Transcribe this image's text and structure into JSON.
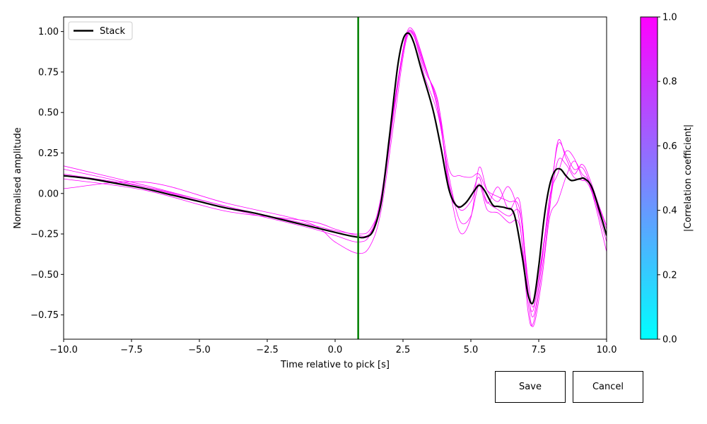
{
  "chart_data": {
    "type": "line",
    "xlabel": "Time relative to pick [s]",
    "ylabel": "Normalised amplitude",
    "xlim": [
      -10,
      10
    ],
    "ylim": [
      -0.9,
      1.09
    ],
    "xticks": [
      "−10.0",
      "−7.5",
      "−5.0",
      "−2.5",
      "0.0",
      "2.5",
      "5.0",
      "7.5",
      "10.0"
    ],
    "yticks": [
      "−0.75",
      "−0.50",
      "−0.25",
      "0.00",
      "0.25",
      "0.50",
      "0.75",
      "1.00"
    ],
    "legend": {
      "placement": "upper-left",
      "entries": [
        "Stack"
      ]
    },
    "pick_time": 0.85,
    "pick_color": "#008000",
    "stack": {
      "name": "Stack",
      "color": "#000000",
      "x": [
        -10,
        -9,
        -8,
        -7,
        -6,
        -5,
        -4,
        -3,
        -2,
        -1,
        0,
        0.5,
        0.85,
        1.1,
        1.4,
        1.7,
        2.0,
        2.3,
        2.5,
        2.7,
        2.9,
        3.2,
        3.6,
        3.9,
        4.2,
        4.5,
        4.8,
        5.1,
        5.3,
        5.5,
        5.8,
        6.0,
        6.3,
        6.6,
        6.9,
        7.1,
        7.3,
        7.5,
        7.7,
        7.9,
        8.1,
        8.3,
        8.5,
        8.7,
        9.0,
        9.2,
        9.5,
        10.0
      ],
      "y": [
        0.11,
        0.09,
        0.06,
        0.03,
        -0.01,
        -0.05,
        -0.09,
        -0.12,
        -0.16,
        -0.2,
        -0.24,
        -0.26,
        -0.27,
        -0.27,
        -0.23,
        -0.05,
        0.35,
        0.78,
        0.95,
        0.99,
        0.93,
        0.75,
        0.52,
        0.28,
        0.02,
        -0.08,
        -0.06,
        0.01,
        0.05,
        0.02,
        -0.07,
        -0.08,
        -0.09,
        -0.13,
        -0.4,
        -0.62,
        -0.67,
        -0.45,
        -0.15,
        0.05,
        0.14,
        0.15,
        0.11,
        0.08,
        0.09,
        0.09,
        0.02,
        -0.26
      ]
    },
    "traces": [
      {
        "x": [
          -10,
          -7,
          -4,
          -1,
          0,
          0.85,
          1.3,
          1.7,
          2.2,
          2.6,
          2.9,
          3.3,
          3.8,
          4.2,
          4.6,
          5.0,
          5.3,
          5.6,
          6.0,
          6.4,
          6.8,
          7.1,
          7.3,
          7.6,
          7.9,
          8.2,
          8.5,
          8.8,
          9.1,
          9.4,
          10.0
        ],
        "y": [
          0.17,
          0.05,
          -0.08,
          -0.19,
          -0.23,
          -0.25,
          -0.22,
          -0.03,
          0.55,
          0.95,
          0.98,
          0.78,
          0.55,
          0.15,
          0.11,
          0.1,
          0.12,
          0.02,
          -0.02,
          -0.05,
          -0.1,
          -0.6,
          -0.72,
          -0.4,
          -0.05,
          0.3,
          0.24,
          0.15,
          0.16,
          0.06,
          -0.2
        ]
      },
      {
        "x": [
          -10,
          -7,
          -4,
          -1,
          0,
          0.85,
          1.3,
          1.7,
          2.2,
          2.6,
          2.9,
          3.3,
          3.8,
          4.2,
          4.6,
          5.0,
          5.3,
          5.6,
          6.0,
          6.4,
          6.8,
          7.1,
          7.3,
          7.6,
          7.9,
          8.2,
          8.5,
          8.8,
          9.1,
          9.4,
          10.0
        ],
        "y": [
          0.15,
          0.04,
          -0.09,
          -0.21,
          -0.26,
          -0.3,
          -0.25,
          -0.01,
          0.58,
          0.96,
          0.99,
          0.8,
          0.5,
          0.05,
          -0.24,
          -0.15,
          0.16,
          0.02,
          -0.05,
          0.04,
          -0.18,
          -0.72,
          -0.8,
          -0.5,
          -0.1,
          0.32,
          0.22,
          0.12,
          0.18,
          0.08,
          -0.22
        ]
      },
      {
        "x": [
          -10,
          -7,
          -4,
          -1,
          0,
          0.85,
          1.3,
          1.7,
          2.2,
          2.6,
          2.9,
          3.3,
          3.8,
          4.2,
          4.6,
          5.0,
          5.3,
          5.6,
          6.0,
          6.4,
          6.8,
          7.1,
          7.3,
          7.6,
          7.9,
          8.2,
          8.5,
          8.8,
          9.1,
          9.4,
          10.0
        ],
        "y": [
          0.03,
          0.07,
          -0.06,
          -0.18,
          -0.3,
          -0.37,
          -0.32,
          -0.1,
          0.48,
          0.93,
          0.97,
          0.72,
          0.48,
          0.1,
          -0.17,
          -0.14,
          0.05,
          -0.1,
          -0.12,
          -0.18,
          -0.2,
          -0.66,
          -0.82,
          -0.55,
          -0.15,
          -0.05,
          0.1,
          0.2,
          0.12,
          0.05,
          -0.3
        ]
      },
      {
        "x": [
          -10,
          -7,
          -4,
          -1,
          0,
          0.85,
          1.3,
          1.7,
          2.2,
          2.6,
          2.9,
          3.3,
          3.8,
          4.2,
          4.6,
          5.0,
          5.3,
          5.6,
          6.0,
          6.4,
          6.8,
          7.1,
          7.3,
          7.6,
          7.9,
          8.2,
          8.5,
          8.8,
          9.1,
          9.4,
          10.0
        ],
        "y": [
          0.09,
          0.02,
          -0.11,
          -0.17,
          -0.22,
          -0.26,
          -0.24,
          -0.04,
          0.56,
          0.97,
          1.0,
          0.79,
          0.52,
          0.06,
          -0.1,
          -0.05,
          0.06,
          -0.05,
          -0.1,
          -0.14,
          -0.12,
          -0.52,
          -0.7,
          -0.42,
          -0.08,
          0.2,
          0.18,
          0.1,
          0.08,
          0.04,
          -0.36
        ]
      },
      {
        "x": [
          -10,
          -7,
          -4,
          -1,
          0,
          0.85,
          1.3,
          1.7,
          2.2,
          2.6,
          2.9,
          3.3,
          3.8,
          4.2,
          4.6,
          5.0,
          5.3,
          5.6,
          6.0,
          6.4,
          6.8,
          7.1,
          7.3,
          7.6,
          7.9,
          8.2,
          8.5,
          8.8,
          9.1,
          9.4,
          10.0
        ],
        "y": [
          0.12,
          0.04,
          -0.08,
          -0.2,
          -0.24,
          -0.27,
          -0.25,
          -0.06,
          0.54,
          0.95,
          0.98,
          0.76,
          0.56,
          0.02,
          -0.08,
          -0.02,
          0.1,
          -0.06,
          0.04,
          -0.1,
          -0.05,
          -0.58,
          -0.76,
          -0.45,
          -0.02,
          0.12,
          0.26,
          0.22,
          0.1,
          0.03,
          -0.25
        ]
      }
    ],
    "trace_color": "#ff00ff",
    "colorbar": {
      "label": "|Correlation coefficient|",
      "range": [
        0.0,
        1.0
      ],
      "tick_values": [
        0.0,
        0.2,
        0.4,
        0.6,
        0.8,
        1.0
      ],
      "tick_labels": [
        "0.0",
        "0.2",
        "0.4",
        "0.6",
        "0.8",
        "1.0"
      ],
      "color_low": "#00ffff",
      "color_high": "#ff00ff"
    }
  },
  "buttons": {
    "save": "Save",
    "cancel": "Cancel"
  }
}
